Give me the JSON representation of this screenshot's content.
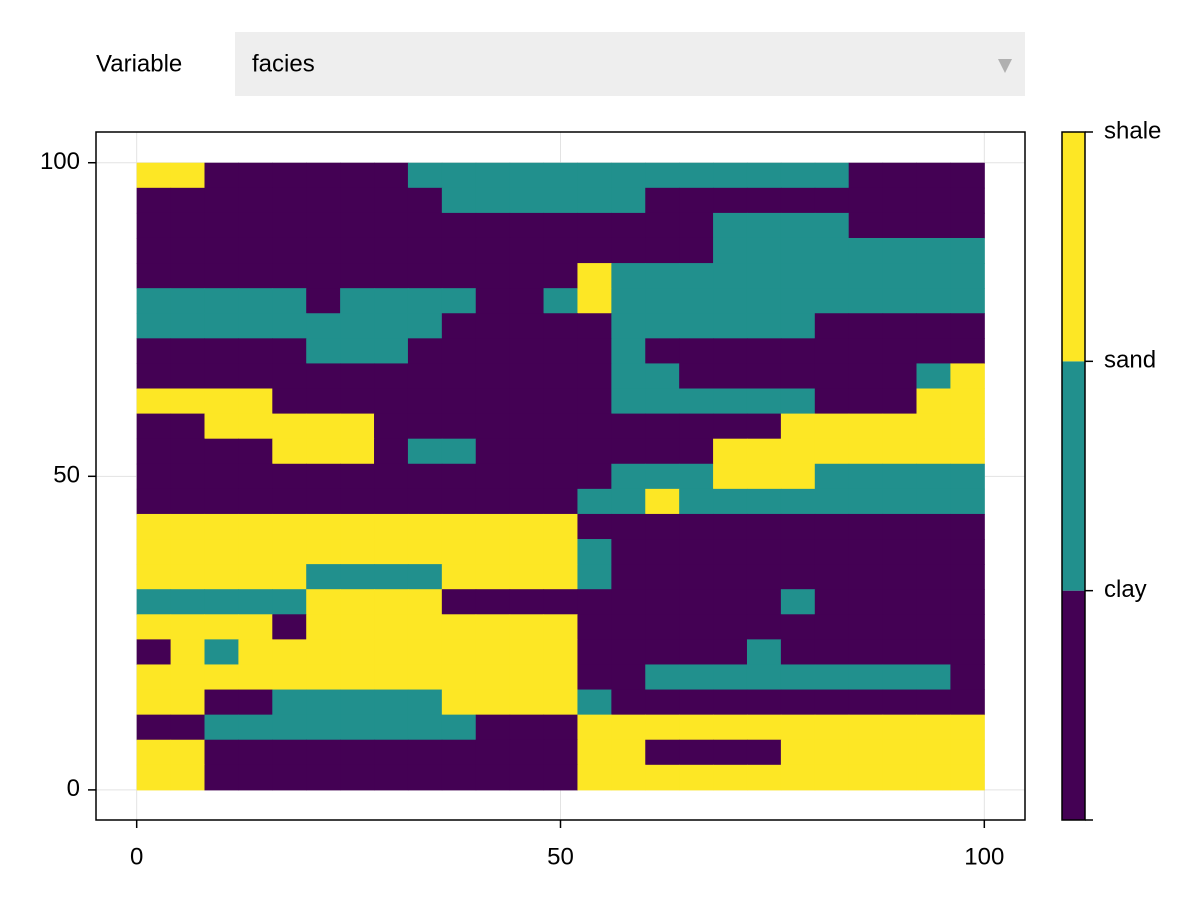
{
  "controls": {
    "label": "Variable",
    "selected": "facies"
  },
  "chart_data": {
    "type": "heatmap",
    "xlim": [
      -4.8,
      104.8
    ],
    "ylim": [
      -4.8,
      104.9
    ],
    "xticks": [
      0,
      50,
      100
    ],
    "yticks": [
      0,
      50,
      100
    ],
    "grid": true,
    "xrange": [
      0,
      100
    ],
    "yrange": [
      0,
      100
    ],
    "colorbar": {
      "labels": [
        "clay",
        "sand",
        "shale"
      ],
      "colors": [
        "#440154",
        "#21908d",
        "#fde725"
      ]
    },
    "z": [
      [
        2,
        2,
        0,
        0,
        0,
        0,
        0,
        0,
        1,
        1,
        1,
        1,
        1,
        1,
        1,
        1,
        1,
        1,
        1,
        1,
        1,
        0,
        0,
        0,
        0
      ],
      [
        0,
        0,
        0,
        0,
        0,
        0,
        0,
        0,
        0,
        1,
        1,
        1,
        1,
        1,
        1,
        0,
        0,
        0,
        0,
        0,
        0,
        0,
        0,
        0,
        0
      ],
      [
        0,
        0,
        0,
        0,
        0,
        0,
        0,
        0,
        0,
        0,
        0,
        0,
        0,
        0,
        0,
        0,
        0,
        1,
        1,
        1,
        1,
        0,
        0,
        0,
        0
      ],
      [
        0,
        0,
        0,
        0,
        0,
        0,
        0,
        0,
        0,
        0,
        0,
        0,
        0,
        0,
        0,
        0,
        0,
        1,
        1,
        1,
        1,
        1,
        1,
        1,
        1
      ],
      [
        0,
        0,
        0,
        0,
        0,
        0,
        0,
        0,
        0,
        0,
        0,
        0,
        0,
        2,
        1,
        1,
        1,
        1,
        1,
        1,
        1,
        1,
        1,
        1,
        1
      ],
      [
        1,
        1,
        1,
        1,
        1,
        0,
        1,
        1,
        1,
        1,
        0,
        0,
        1,
        2,
        1,
        1,
        1,
        1,
        1,
        1,
        1,
        1,
        1,
        1,
        1
      ],
      [
        1,
        1,
        1,
        1,
        1,
        1,
        1,
        1,
        1,
        0,
        0,
        0,
        0,
        0,
        1,
        1,
        1,
        1,
        1,
        1,
        0,
        0,
        0,
        0,
        0
      ],
      [
        0,
        0,
        0,
        0,
        0,
        1,
        1,
        1,
        0,
        0,
        0,
        0,
        0,
        0,
        1,
        0,
        0,
        0,
        0,
        0,
        0,
        0,
        0,
        0,
        0
      ],
      [
        0,
        0,
        0,
        0,
        0,
        0,
        0,
        0,
        0,
        0,
        0,
        0,
        0,
        0,
        1,
        1,
        0,
        0,
        0,
        0,
        0,
        0,
        0,
        1,
        2
      ],
      [
        2,
        2,
        2,
        2,
        0,
        0,
        0,
        0,
        0,
        0,
        0,
        0,
        0,
        0,
        1,
        1,
        1,
        1,
        1,
        1,
        0,
        0,
        0,
        2,
        2
      ],
      [
        0,
        0,
        2,
        2,
        2,
        2,
        2,
        0,
        0,
        0,
        0,
        0,
        0,
        0,
        0,
        0,
        0,
        0,
        0,
        2,
        2,
        2,
        2,
        2,
        2
      ],
      [
        0,
        0,
        0,
        0,
        2,
        2,
        2,
        0,
        1,
        1,
        0,
        0,
        0,
        0,
        0,
        0,
        0,
        2,
        2,
        2,
        2,
        2,
        2,
        2,
        2
      ],
      [
        0,
        0,
        0,
        0,
        0,
        0,
        0,
        0,
        0,
        0,
        0,
        0,
        0,
        0,
        1,
        1,
        1,
        2,
        2,
        2,
        1,
        1,
        1,
        1,
        1
      ],
      [
        0,
        0,
        0,
        0,
        0,
        0,
        0,
        0,
        0,
        0,
        0,
        0,
        0,
        1,
        1,
        2,
        1,
        1,
        1,
        1,
        1,
        1,
        1,
        1,
        1
      ],
      [
        2,
        2,
        2,
        2,
        2,
        2,
        2,
        2,
        2,
        2,
        2,
        2,
        2,
        0,
        0,
        0,
        0,
        0,
        0,
        0,
        0,
        0,
        0,
        0,
        0
      ],
      [
        2,
        2,
        2,
        2,
        2,
        2,
        2,
        2,
        2,
        2,
        2,
        2,
        2,
        1,
        0,
        0,
        0,
        0,
        0,
        0,
        0,
        0,
        0,
        0,
        0
      ],
      [
        2,
        2,
        2,
        2,
        2,
        1,
        1,
        1,
        1,
        2,
        2,
        2,
        2,
        1,
        0,
        0,
        0,
        0,
        0,
        0,
        0,
        0,
        0,
        0,
        0
      ],
      [
        1,
        1,
        1,
        1,
        1,
        2,
        2,
        2,
        2,
        0,
        0,
        0,
        0,
        0,
        0,
        0,
        0,
        0,
        0,
        1,
        0,
        0,
        0,
        0,
        0
      ],
      [
        2,
        2,
        2,
        2,
        0,
        2,
        2,
        2,
        2,
        2,
        2,
        2,
        2,
        0,
        0,
        0,
        0,
        0,
        0,
        0,
        0,
        0,
        0,
        0,
        0
      ],
      [
        0,
        2,
        1,
        2,
        2,
        2,
        2,
        2,
        2,
        2,
        2,
        2,
        2,
        0,
        0,
        0,
        0,
        0,
        1,
        0,
        0,
        0,
        0,
        0,
        0
      ],
      [
        2,
        2,
        2,
        2,
        2,
        2,
        2,
        2,
        2,
        2,
        2,
        2,
        2,
        0,
        0,
        1,
        1,
        1,
        1,
        1,
        1,
        1,
        1,
        1,
        0
      ],
      [
        2,
        2,
        0,
        0,
        1,
        1,
        1,
        1,
        1,
        2,
        2,
        2,
        2,
        1,
        0,
        0,
        0,
        0,
        0,
        0,
        0,
        0,
        0,
        0,
        0
      ],
      [
        0,
        0,
        1,
        1,
        1,
        1,
        1,
        1,
        1,
        1,
        0,
        0,
        0,
        2,
        2,
        2,
        2,
        2,
        2,
        2,
        2,
        2,
        2,
        2,
        2
      ],
      [
        2,
        2,
        0,
        0,
        0,
        0,
        0,
        0,
        0,
        0,
        0,
        0,
        0,
        2,
        2,
        0,
        0,
        0,
        0,
        2,
        2,
        2,
        2,
        2,
        2
      ],
      [
        2,
        2,
        0,
        0,
        0,
        0,
        0,
        0,
        0,
        0,
        0,
        0,
        0,
        2,
        2,
        2,
        2,
        2,
        2,
        2,
        2,
        2,
        2,
        2,
        2
      ]
    ]
  }
}
